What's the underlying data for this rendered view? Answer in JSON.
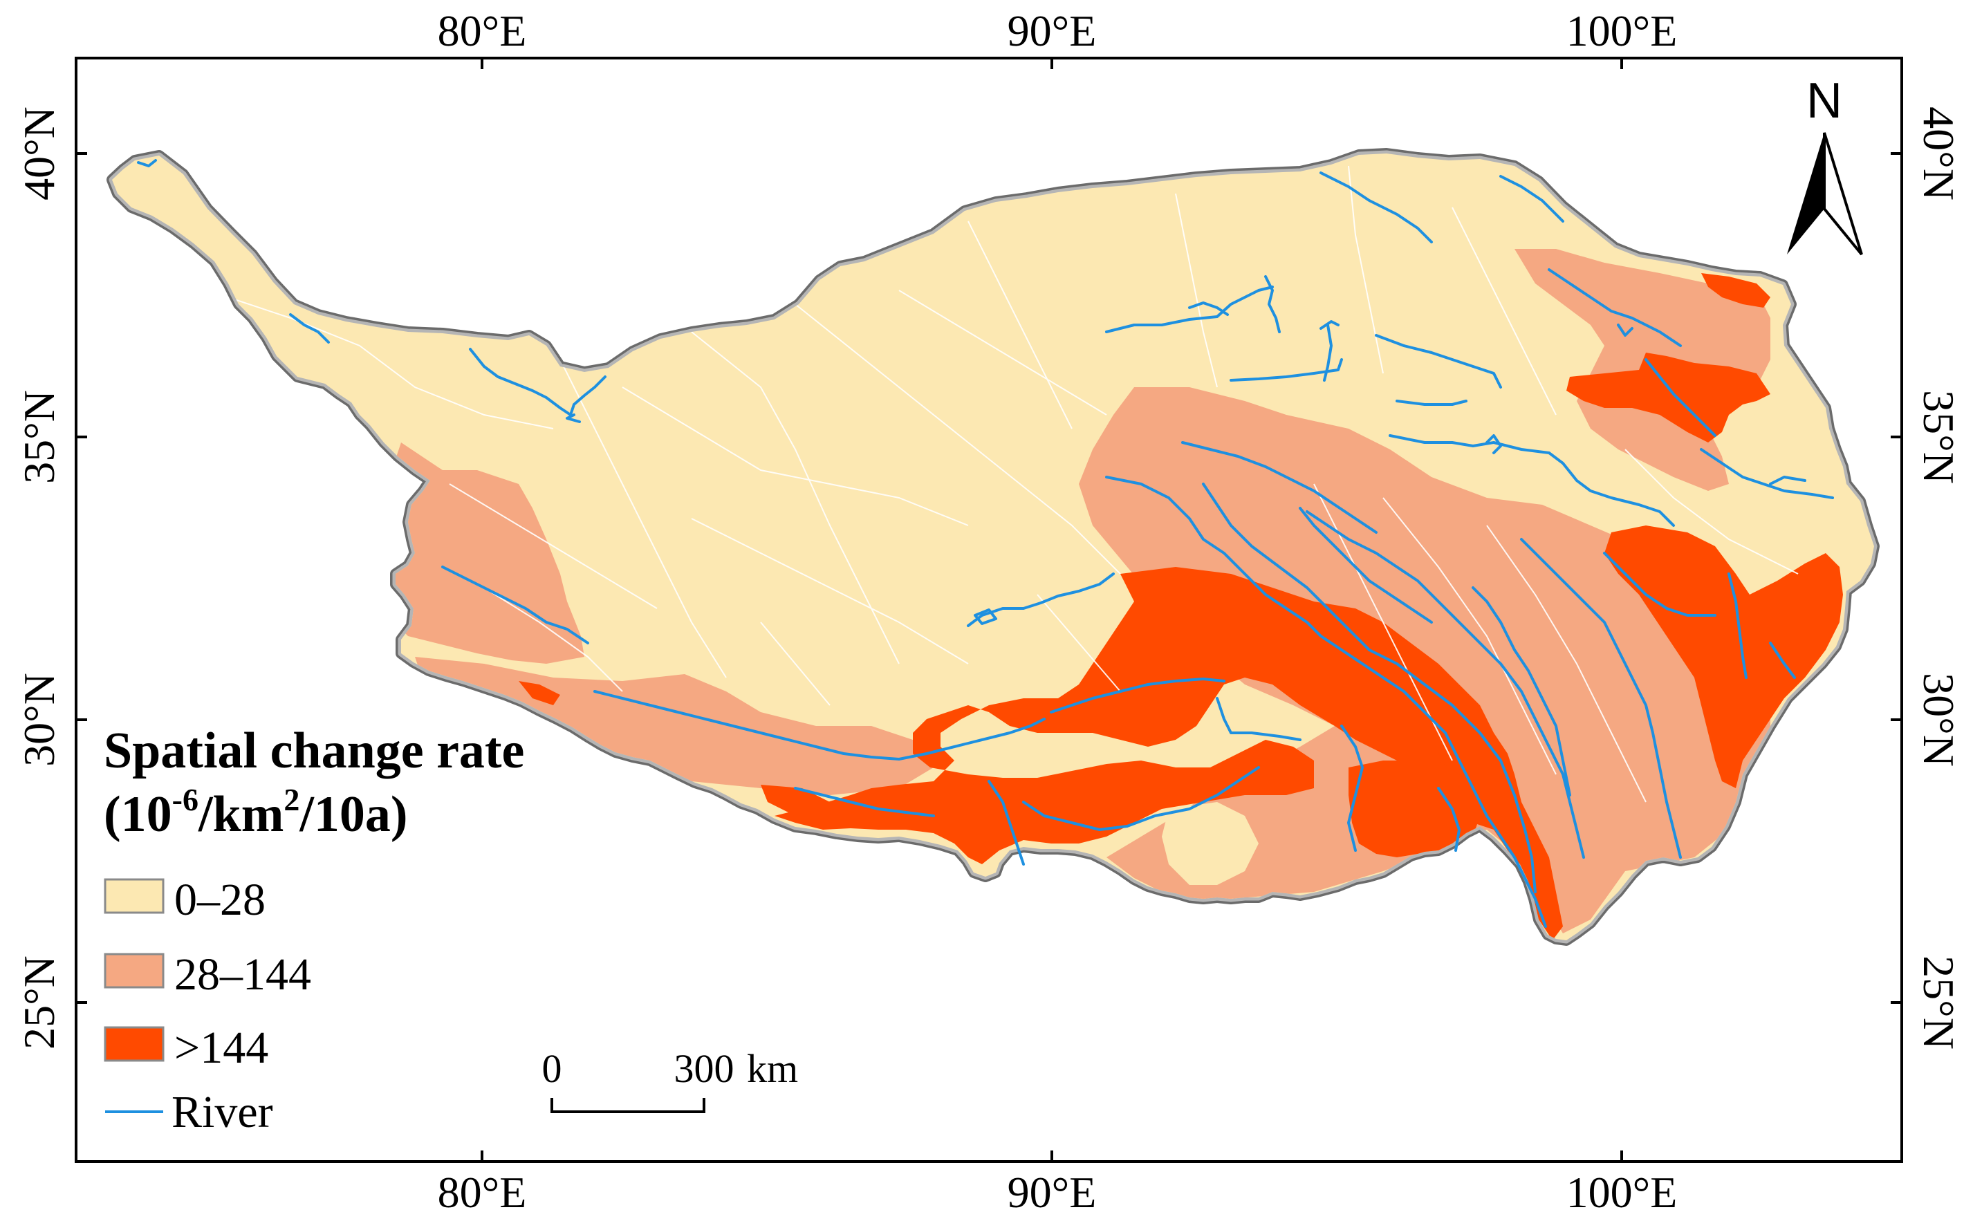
{
  "map": {
    "frame": {
      "top_ticks": [
        "80°E",
        "90°E",
        "100°E"
      ],
      "bottom_ticks": [
        "80°E",
        "90°E",
        "100°E"
      ],
      "left_ticks": [
        "40°N",
        "35°N",
        "30°N",
        "25°N"
      ],
      "right_ticks": [
        "40°N",
        "35°N",
        "30°N",
        "25°N"
      ]
    },
    "legend": {
      "title_line1": "Spatial change rate",
      "title_line2_prefix": "(10",
      "title_line2_sup1": "-6",
      "title_line2_mid": "/km",
      "title_line2_sup2": "2",
      "title_line2_suffix": "/10a)",
      "classes": [
        {
          "label": "0–28",
          "color": "#FCE8B2"
        },
        {
          "label": "28–144",
          "color": "#F5A882"
        },
        {
          "label": ">144",
          "color": "#FF4A00"
        }
      ],
      "river_label": "River",
      "river_color": "#1E90E0"
    },
    "scale_bar": {
      "start_label": "0",
      "end_label": "300",
      "unit": "km"
    },
    "north_arrow": {
      "label": "N"
    },
    "colors": {
      "boundary": "#9a9a9a",
      "boundary_outline": "#555555",
      "frame": "#000000"
    }
  }
}
